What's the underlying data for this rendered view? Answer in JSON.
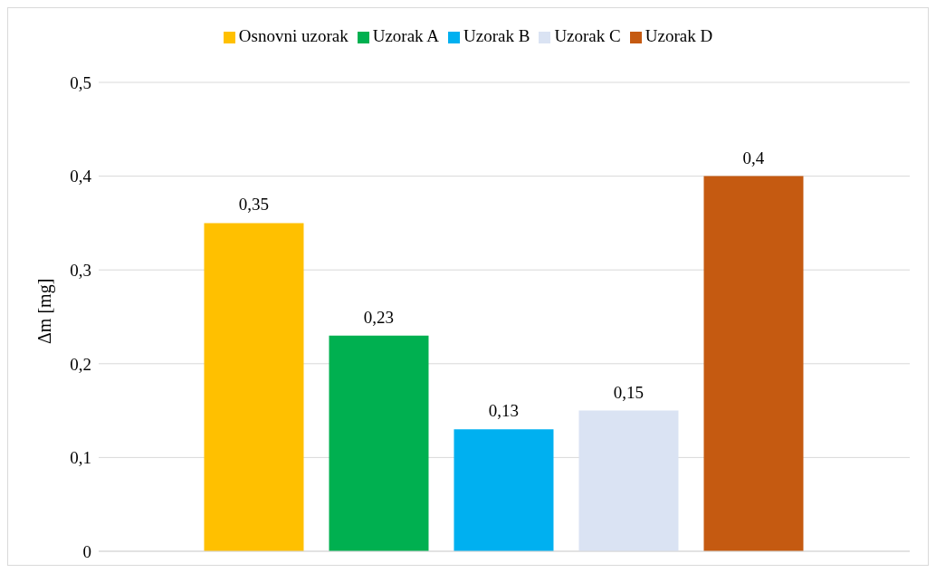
{
  "chart_data": {
    "type": "bar",
    "ylabel": "Δm [mg]",
    "categories": [
      null
    ],
    "series": [
      {
        "name": "Osnovni uzorak",
        "color": "#ffc000",
        "values": [
          0.35
        ],
        "value_labels": [
          "0,35"
        ]
      },
      {
        "name": "Uzorak A",
        "color": "#00b050",
        "values": [
          0.23
        ],
        "value_labels": [
          "0,23"
        ]
      },
      {
        "name": "Uzorak B",
        "color": "#00b0f0",
        "values": [
          0.13
        ],
        "value_labels": [
          "0,13"
        ]
      },
      {
        "name": "Uzorak C",
        "color": "#dae3f3",
        "values": [
          0.15
        ],
        "value_labels": [
          "0,15"
        ]
      },
      {
        "name": "Uzorak D",
        "color": "#c55a11",
        "values": [
          0.4
        ],
        "value_labels": [
          "0,4"
        ]
      }
    ],
    "ylim": [
      0,
      0.5
    ],
    "yticks": [
      {
        "value": 0,
        "label": "0"
      },
      {
        "value": 0.1,
        "label": "0,1"
      },
      {
        "value": 0.2,
        "label": "0,2"
      },
      {
        "value": 0.3,
        "label": "0,3"
      },
      {
        "value": 0.4,
        "label": "0,4"
      },
      {
        "value": 0.5,
        "label": "0,5"
      }
    ],
    "grid": "y",
    "legend": "top",
    "tick_labels": "y"
  }
}
